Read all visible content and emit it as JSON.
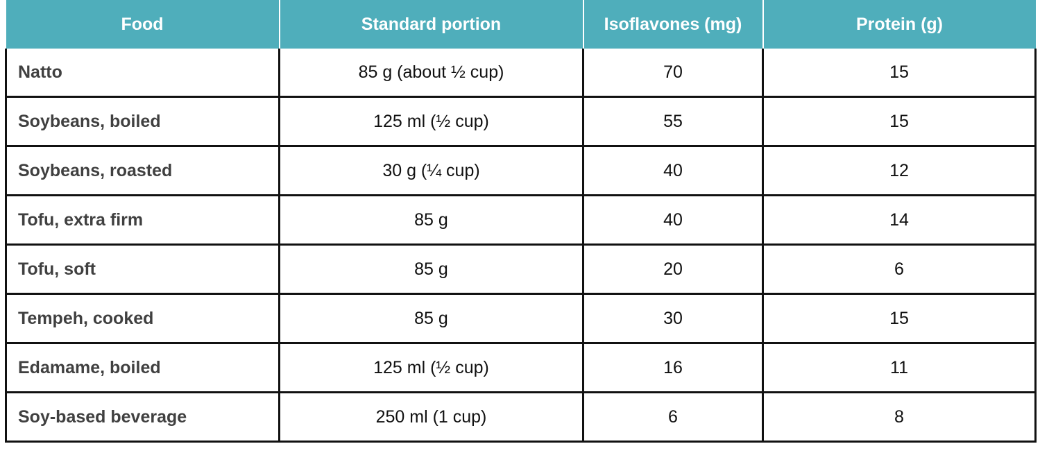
{
  "table": {
    "header_color": "#4FAEBB",
    "columns": [
      {
        "key": "food",
        "label": "Food"
      },
      {
        "key": "portion",
        "label": "Standard portion"
      },
      {
        "key": "isoflavones",
        "label": "Isoflavones (mg)"
      },
      {
        "key": "protein",
        "label": "Protein (g)"
      }
    ],
    "rows": [
      {
        "food": "Natto",
        "portion": "85 g (about ½ cup)",
        "isoflavones": "70",
        "protein": "15"
      },
      {
        "food": "Soybeans, boiled",
        "portion": "125 ml (½ cup)",
        "isoflavones": "55",
        "protein": "15"
      },
      {
        "food": "Soybeans, roasted",
        "portion": "30 g (¼ cup)",
        "isoflavones": "40",
        "protein": "12"
      },
      {
        "food": "Tofu, extra firm",
        "portion": "85 g",
        "isoflavones": "40",
        "protein": "14"
      },
      {
        "food": "Tofu, soft",
        "portion": "85 g",
        "isoflavones": "20",
        "protein": "6"
      },
      {
        "food": "Tempeh, cooked",
        "portion": "85 g",
        "isoflavones": "30",
        "protein": "15"
      },
      {
        "food": "Edamame, boiled",
        "portion": "125 ml (½ cup)",
        "isoflavones": "16",
        "protein": "11"
      },
      {
        "food": "Soy-based beverage",
        "portion": "250 ml (1 cup)",
        "isoflavones": "6",
        "protein": "8"
      }
    ]
  }
}
